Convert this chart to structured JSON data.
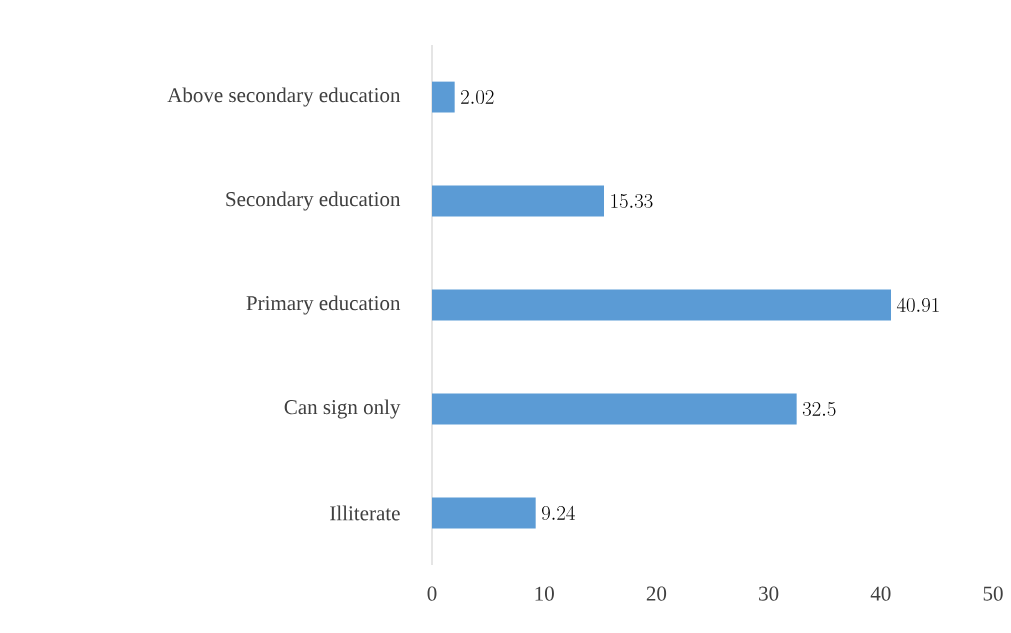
{
  "chart_data": {
    "type": "bar",
    "orientation": "horizontal",
    "categories": [
      "Above secondary education",
      "Secondary education",
      "Primary education",
      "Can sign only",
      "Illiterate"
    ],
    "values": [
      2.02,
      15.33,
      40.91,
      32.5,
      9.24
    ],
    "color": "#5b9bd5",
    "xlim": [
      0,
      50
    ],
    "xticks": [
      0,
      10,
      20,
      30,
      40,
      50
    ],
    "grid": false,
    "data_labels": true
  }
}
